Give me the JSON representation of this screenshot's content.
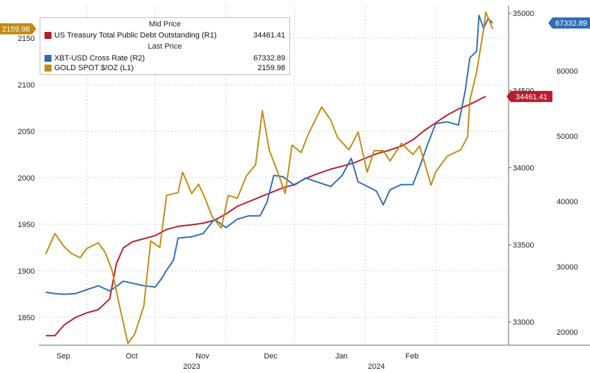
{
  "chart_data": {
    "type": "line",
    "title": "",
    "colors": {
      "debt": "#b81d2f",
      "btc": "#2e6db4",
      "gold": "#c38a12",
      "grid": "#cfcfcf"
    },
    "legend": {
      "placement": "top-left",
      "mid_price_label": "Mid Price",
      "last_price_label": "Last Price",
      "entries": [
        {
          "key": "debt",
          "name": "US Treasury Total Public Debt Outstanding  (R1)",
          "value": "34461.41"
        },
        {
          "key": "btc",
          "name": "XBT-USD Cross Rate  (R2)",
          "value": "67332.89"
        },
        {
          "key": "gold",
          "name": "GOLD SPOT $/OZ  (L1)",
          "value": "2159.98"
        }
      ]
    },
    "x_axis": {
      "range": [
        "2023-08-25",
        "2024-03-18"
      ],
      "month_labels": [
        {
          "label": "Sep",
          "date": "2023-09-01"
        },
        {
          "label": "Oct",
          "date": "2023-10-01"
        },
        {
          "label": "Nov",
          "date": "2023-11-01"
        },
        {
          "label": "Dec",
          "date": "2023-12-01"
        },
        {
          "label": "Jan",
          "date": "2024-01-01"
        },
        {
          "label": "Feb",
          "date": "2024-02-01"
        }
      ],
      "gridlines": [
        "2023-09-15",
        "2023-10-15",
        "2023-11-15",
        "2023-12-15",
        "2024-01-15",
        "2024-02-15"
      ],
      "year_labels": [
        {
          "label": "2023",
          "date": "2023-10-31"
        },
        {
          "label": "2024",
          "date": "2024-01-20"
        }
      ]
    },
    "y_left": {
      "name": "L1",
      "range": [
        1820,
        2185
      ],
      "ticks": [
        1850,
        1900,
        1950,
        2000,
        2050,
        2100,
        2150
      ]
    },
    "y_right1": {
      "name": "R1",
      "range": [
        32850,
        35050
      ],
      "ticks": [
        33000,
        33500,
        34000,
        34500,
        35000
      ]
    },
    "y_right2": {
      "name": "R2",
      "range": [
        18000,
        70000
      ],
      "ticks": [
        20000,
        30000,
        40000,
        50000,
        60000
      ]
    },
    "grid": true,
    "last_value_labels": {
      "gold": "2159.98",
      "btc": "67332.89",
      "debt": "34461.41"
    },
    "series": [
      {
        "key": "debt",
        "name": "US Treasury Total Public Debt Outstanding  (R1)",
        "axis": "R1",
        "points": [
          [
            "2023-08-28",
            32912
          ],
          [
            "2023-09-01",
            32912
          ],
          [
            "2023-09-05",
            32980
          ],
          [
            "2023-09-10",
            33030
          ],
          [
            "2023-09-15",
            33060
          ],
          [
            "2023-09-20",
            33080
          ],
          [
            "2023-09-25",
            33150
          ],
          [
            "2023-09-28",
            33380
          ],
          [
            "2023-10-01",
            33480
          ],
          [
            "2023-10-05",
            33520
          ],
          [
            "2023-10-10",
            33540
          ],
          [
            "2023-10-15",
            33560
          ],
          [
            "2023-10-20",
            33600
          ],
          [
            "2023-10-25",
            33620
          ],
          [
            "2023-10-31",
            33630
          ],
          [
            "2023-11-05",
            33640
          ],
          [
            "2023-11-10",
            33660
          ],
          [
            "2023-11-15",
            33700
          ],
          [
            "2023-11-20",
            33750
          ],
          [
            "2023-11-25",
            33780
          ],
          [
            "2023-11-30",
            33810
          ],
          [
            "2023-12-05",
            33840
          ],
          [
            "2023-12-10",
            33870
          ],
          [
            "2023-12-15",
            33890
          ],
          [
            "2023-12-20",
            33930
          ],
          [
            "2023-12-25",
            33960
          ],
          [
            "2023-12-31",
            33990
          ],
          [
            "2024-01-05",
            34010
          ],
          [
            "2024-01-10",
            34030
          ],
          [
            "2024-01-15",
            34060
          ],
          [
            "2024-01-20",
            34090
          ],
          [
            "2024-01-25",
            34110
          ],
          [
            "2024-01-31",
            34140
          ],
          [
            "2024-02-05",
            34180
          ],
          [
            "2024-02-10",
            34240
          ],
          [
            "2024-02-15",
            34290
          ],
          [
            "2024-02-20",
            34340
          ],
          [
            "2024-02-25",
            34380
          ],
          [
            "2024-03-01",
            34410
          ],
          [
            "2024-03-05",
            34440
          ],
          [
            "2024-03-08",
            34461.41
          ]
        ]
      },
      {
        "key": "btc",
        "name": "XBT-USD Cross Rate  (R2)",
        "axis": "R2",
        "points": [
          [
            "2023-08-28",
            26100
          ],
          [
            "2023-09-01",
            25900
          ],
          [
            "2023-09-05",
            25800
          ],
          [
            "2023-09-10",
            25900
          ],
          [
            "2023-09-15",
            26500
          ],
          [
            "2023-09-20",
            27100
          ],
          [
            "2023-09-25",
            26300
          ],
          [
            "2023-09-28",
            27000
          ],
          [
            "2023-10-01",
            27800
          ],
          [
            "2023-10-05",
            27500
          ],
          [
            "2023-10-10",
            27100
          ],
          [
            "2023-10-15",
            26900
          ],
          [
            "2023-10-18",
            28300
          ],
          [
            "2023-10-20",
            29500
          ],
          [
            "2023-10-23",
            31000
          ],
          [
            "2023-10-25",
            34400
          ],
          [
            "2023-10-31",
            34600
          ],
          [
            "2023-11-05",
            35100
          ],
          [
            "2023-11-10",
            37300
          ],
          [
            "2023-11-15",
            36000
          ],
          [
            "2023-11-20",
            37300
          ],
          [
            "2023-11-25",
            37800
          ],
          [
            "2023-11-30",
            37800
          ],
          [
            "2023-12-03",
            39900
          ],
          [
            "2023-12-06",
            44000
          ],
          [
            "2023-12-10",
            43800
          ],
          [
            "2023-12-15",
            42500
          ],
          [
            "2023-12-20",
            43600
          ],
          [
            "2023-12-25",
            43000
          ],
          [
            "2023-12-31",
            42300
          ],
          [
            "2024-01-05",
            44000
          ],
          [
            "2024-01-09",
            46600
          ],
          [
            "2024-01-12",
            43000
          ],
          [
            "2024-01-15",
            42500
          ],
          [
            "2024-01-20",
            41600
          ],
          [
            "2024-01-23",
            39500
          ],
          [
            "2024-01-26",
            41800
          ],
          [
            "2024-01-31",
            42600
          ],
          [
            "2024-02-05",
            42600
          ],
          [
            "2024-02-08",
            45300
          ],
          [
            "2024-02-11",
            48300
          ],
          [
            "2024-02-15",
            51900
          ],
          [
            "2024-02-20",
            52200
          ],
          [
            "2024-02-25",
            51700
          ],
          [
            "2024-02-28",
            57000
          ],
          [
            "2024-03-01",
            62000
          ],
          [
            "2024-03-04",
            63000
          ],
          [
            "2024-03-05",
            68500
          ],
          [
            "2024-03-07",
            66500
          ],
          [
            "2024-03-09",
            68000
          ],
          [
            "2024-03-11",
            67332.89
          ]
        ]
      },
      {
        "key": "gold",
        "name": "GOLD SPOT $/OZ  (L1)",
        "axis": "L1",
        "points": [
          [
            "2023-08-28",
            1918
          ],
          [
            "2023-09-01",
            1940
          ],
          [
            "2023-09-05",
            1926
          ],
          [
            "2023-09-08",
            1919
          ],
          [
            "2023-09-12",
            1914
          ],
          [
            "2023-09-15",
            1924
          ],
          [
            "2023-09-20",
            1930
          ],
          [
            "2023-09-23",
            1920
          ],
          [
            "2023-09-26",
            1901
          ],
          [
            "2023-09-29",
            1866
          ],
          [
            "2023-10-03",
            1822
          ],
          [
            "2023-10-06",
            1832
          ],
          [
            "2023-10-10",
            1862
          ],
          [
            "2023-10-13",
            1932
          ],
          [
            "2023-10-17",
            1925
          ],
          [
            "2023-10-20",
            1981
          ],
          [
            "2023-10-25",
            1984
          ],
          [
            "2023-10-27",
            2006
          ],
          [
            "2023-10-31",
            1983
          ],
          [
            "2023-11-03",
            1993
          ],
          [
            "2023-11-06",
            1977
          ],
          [
            "2023-11-09",
            1958
          ],
          [
            "2023-11-13",
            1946
          ],
          [
            "2023-11-16",
            1981
          ],
          [
            "2023-11-20",
            1978
          ],
          [
            "2023-11-24",
            2002
          ],
          [
            "2023-11-28",
            2014
          ],
          [
            "2023-12-01",
            2072
          ],
          [
            "2023-12-04",
            2030
          ],
          [
            "2023-12-08",
            2004
          ],
          [
            "2023-12-11",
            1983
          ],
          [
            "2023-12-14",
            2035
          ],
          [
            "2023-12-18",
            2027
          ],
          [
            "2023-12-21",
            2046
          ],
          [
            "2023-12-27",
            2076
          ],
          [
            "2023-12-31",
            2062
          ],
          [
            "2024-01-03",
            2043
          ],
          [
            "2024-01-08",
            2030
          ],
          [
            "2024-01-12",
            2049
          ],
          [
            "2024-01-16",
            2006
          ],
          [
            "2024-01-19",
            2029
          ],
          [
            "2024-01-23",
            2029
          ],
          [
            "2024-01-26",
            2018
          ],
          [
            "2024-01-31",
            2037
          ],
          [
            "2024-02-05",
            2025
          ],
          [
            "2024-02-08",
            2034
          ],
          [
            "2024-02-13",
            1992
          ],
          [
            "2024-02-15",
            2006
          ],
          [
            "2024-02-20",
            2023
          ],
          [
            "2024-02-26",
            2030
          ],
          [
            "2024-02-29",
            2044
          ],
          [
            "2024-03-01",
            2083
          ],
          [
            "2024-03-04",
            2114
          ],
          [
            "2024-03-07",
            2159
          ],
          [
            "2024-03-08",
            2178
          ],
          [
            "2024-03-11",
            2159.98
          ]
        ]
      }
    ]
  }
}
